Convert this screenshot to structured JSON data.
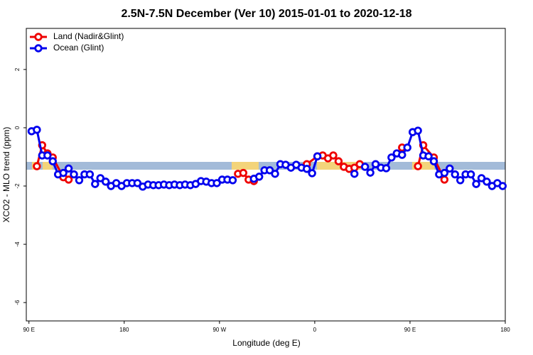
{
  "chart_data": {
    "type": "line",
    "title": "2.5N-7.5N December (Ver 10)   2015-01-01 to 2020-12-18",
    "xlabel": "Longitude (deg E)",
    "ylabel": "XCO2 - MLO trend (ppm)",
    "xlim": [
      87.5,
      540
    ],
    "ylim": [
      -6.63,
      3.41
    ],
    "xticks": [
      {
        "value": 90,
        "label": "90 E"
      },
      180,
      {
        "value": 270,
        "label": "90 W"
      },
      {
        "value": 360,
        "label": "0"
      },
      {
        "value": 450,
        "label": "90 E"
      },
      {
        "value": 540,
        "label": "180"
      }
    ],
    "yticks": [
      -6,
      -4,
      -2,
      0,
      2
    ],
    "legend": "upper left",
    "series": [
      {
        "name": "Land (Nadir&Glint)",
        "color": "#ee0000",
        "x": [
          97.5,
          102.5,
          107.5,
          112.5,
          122.5,
          127.5,
          null,
          287.5,
          292.5,
          297.5,
          302.5,
          null,
          352.5,
          362.5,
          367.5,
          372.5,
          377.5,
          382.5,
          387.5,
          392.5,
          397.5,
          402.5,
          null,
          442.5,
          null,
          457.5,
          462.5,
          472.5,
          482.5
        ],
        "values": [
          -1.32,
          -0.6,
          -0.88,
          -1.02,
          -1.7,
          -1.78,
          null,
          -1.58,
          -1.55,
          -1.78,
          -1.83,
          null,
          -1.25,
          -0.98,
          -0.95,
          -1.05,
          -0.95,
          -1.15,
          -1.34,
          -1.41,
          -1.37,
          -1.25,
          null,
          -0.68,
          null,
          -1.32,
          -0.6,
          -1.02,
          -1.78
        ]
      },
      {
        "name": "Ocean (Glint)",
        "color": "#0000ee",
        "x": [
          92.5,
          97.5,
          102.5,
          107.5,
          112.5,
          117.5,
          122.5,
          127.5,
          132.5,
          137.5,
          142.5,
          147.5,
          152.5,
          157.5,
          162.5,
          167.5,
          172.5,
          177.5,
          182.5,
          187.5,
          192.5,
          197.5,
          202.5,
          207.5,
          212.5,
          217.5,
          222.5,
          227.5,
          232.5,
          237.5,
          242.5,
          247.5,
          252.5,
          257.5,
          262.5,
          267.5,
          272.5,
          277.5,
          282.5,
          287.5,
          292.5,
          297.5,
          302.5,
          307.5,
          312.5,
          317.5,
          322.5,
          327.5,
          332.5,
          337.5,
          342.5,
          347.5,
          352.5,
          357.5,
          362.5,
          367.5,
          372.5,
          377.5,
          382.5,
          387.5,
          392.5,
          397.5,
          402.5,
          407.5,
          412.5,
          417.5,
          422.5,
          427.5,
          432.5,
          437.5,
          442.5,
          447.5,
          452.5,
          457.5,
          462.5,
          467.5,
          472.5,
          477.5,
          482.5,
          487.5,
          492.5,
          497.5,
          502.5,
          507.5,
          512.5,
          517.5,
          522.5,
          527.5,
          532.5,
          537.5
        ],
        "values": [
          -0.12,
          -0.07,
          -0.95,
          -0.95,
          -1.15,
          -1.6,
          -1.55,
          -1.4,
          -1.6,
          -1.8,
          -1.6,
          -1.6,
          -1.93,
          -1.73,
          -1.85,
          -2.0,
          -1.9,
          -2.0,
          -1.9,
          -1.9,
          -1.9,
          -2.02,
          -1.95,
          -1.97,
          -1.97,
          -1.95,
          -1.97,
          -1.95,
          -1.97,
          -1.95,
          -1.97,
          -1.93,
          -1.83,
          -1.85,
          -1.9,
          -1.9,
          -1.78,
          -1.78,
          -1.8,
          null,
          null,
          null,
          -1.75,
          -1.68,
          -1.46,
          -1.46,
          -1.58,
          -1.25,
          -1.27,
          -1.37,
          -1.27,
          -1.37,
          -1.41,
          -1.56,
          -0.98,
          null,
          null,
          null,
          null,
          null,
          null,
          -1.58,
          null,
          -1.34,
          -1.54,
          -1.25,
          -1.37,
          -1.39,
          -1.02,
          -0.88,
          -0.93,
          -0.68,
          -0.15,
          -0.1,
          -0.95,
          -0.98,
          -1.15,
          -1.6,
          -1.55,
          -1.4,
          -1.6,
          -1.8,
          -1.6,
          -1.6,
          -1.93,
          -1.73,
          -1.85,
          -2.0,
          -1.9,
          -2.0
        ]
      }
    ]
  }
}
